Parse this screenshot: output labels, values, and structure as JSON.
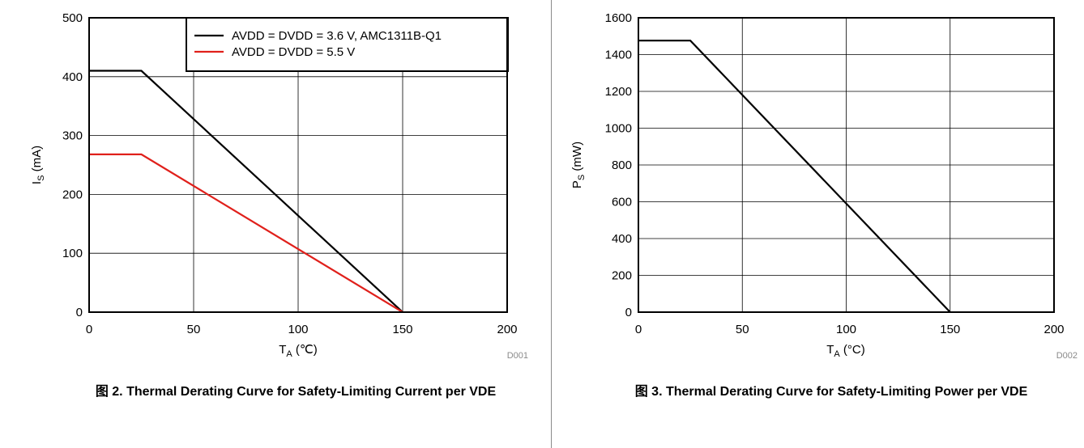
{
  "chart_data": [
    {
      "type": "line",
      "figure_number": "图 2.",
      "caption": "Thermal Derating Curve for Safety-Limiting Current per VDE",
      "ylabel_main": "I",
      "ylabel_sub": "S",
      "ylabel_unit": " (mA)",
      "xlabel_main": "T",
      "xlabel_sub": "A",
      "xlabel_unit": " (℃)",
      "xlim": [
        0,
        200
      ],
      "ylim": [
        0,
        500
      ],
      "xticks": [
        0,
        50,
        100,
        150,
        200
      ],
      "yticks": [
        0,
        100,
        200,
        300,
        400,
        500
      ],
      "grid": true,
      "legend_position": "top-right",
      "code": "D001",
      "series": [
        {
          "name": "AVDD = DVDD = 3.6 V, AMC1311B-Q1",
          "color": "#000000",
          "points": [
            [
              0,
              410
            ],
            [
              25,
              410
            ],
            [
              150,
              0
            ]
          ]
        },
        {
          "name": "AVDD = DVDD = 5.5 V",
          "color": "#e0201b",
          "points": [
            [
              0,
              268
            ],
            [
              25,
              268
            ],
            [
              150,
              0
            ]
          ]
        }
      ]
    },
    {
      "type": "line",
      "figure_number": "图 3.",
      "caption": "Thermal Derating Curve for Safety-Limiting Power per VDE",
      "ylabel_main": "P",
      "ylabel_sub": "S",
      "ylabel_unit": " (mW)",
      "xlabel_main": "T",
      "xlabel_sub": "A",
      "xlabel_unit": " (°C)",
      "xlim": [
        0,
        200
      ],
      "ylim": [
        0,
        1600
      ],
      "xticks": [
        0,
        50,
        100,
        150,
        200
      ],
      "yticks": [
        0,
        200,
        400,
        600,
        800,
        1000,
        1200,
        1400,
        1600
      ],
      "grid": true,
      "code": "D002",
      "series": [
        {
          "color": "#000000",
          "points": [
            [
              0,
              1476
            ],
            [
              25,
              1476
            ],
            [
              150,
              0
            ]
          ]
        }
      ]
    }
  ]
}
